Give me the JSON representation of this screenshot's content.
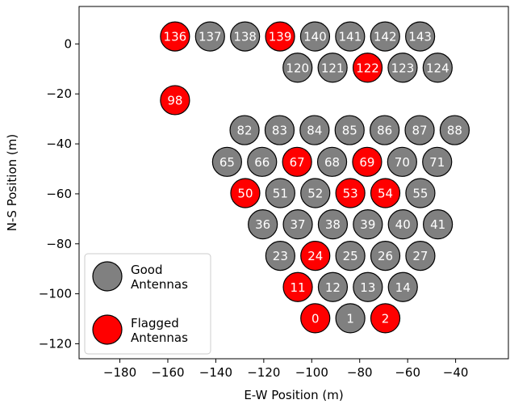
{
  "chart_data": {
    "type": "scatter",
    "xlabel": "E-W Position (m)",
    "ylabel": "N-S Position (m)",
    "xlim": [
      -197,
      -18
    ],
    "ylim": [
      -126,
      15
    ],
    "xticks": [
      -180,
      -160,
      -140,
      -120,
      -100,
      -80,
      -60,
      -40
    ],
    "yticks": [
      0,
      -20,
      -40,
      -60,
      -80,
      -100,
      -120
    ],
    "grid": false,
    "legend_placement": "bottom-left",
    "colors": {
      "good": "#808080",
      "flagged": "#ff0000",
      "edge": "#000000",
      "label": "#ffffff"
    },
    "legend": [
      {
        "status": "good",
        "line1": "Good",
        "line2": "Antennas"
      },
      {
        "status": "flagged",
        "line1": "Flagged",
        "line2": "Antennas"
      }
    ],
    "antennas": [
      {
        "id": "136",
        "x": -157.0,
        "y": 3.0,
        "status": "flagged"
      },
      {
        "id": "137",
        "x": -142.4,
        "y": 3.0,
        "status": "good"
      },
      {
        "id": "138",
        "x": -127.8,
        "y": 3.0,
        "status": "good"
      },
      {
        "id": "139",
        "x": -113.2,
        "y": 3.0,
        "status": "flagged"
      },
      {
        "id": "140",
        "x": -98.6,
        "y": 3.0,
        "status": "good"
      },
      {
        "id": "141",
        "x": -84.0,
        "y": 3.0,
        "status": "good"
      },
      {
        "id": "142",
        "x": -69.4,
        "y": 3.0,
        "status": "good"
      },
      {
        "id": "143",
        "x": -54.8,
        "y": 3.0,
        "status": "good"
      },
      {
        "id": "120",
        "x": -105.9,
        "y": -9.5,
        "status": "good"
      },
      {
        "id": "121",
        "x": -91.3,
        "y": -9.5,
        "status": "good"
      },
      {
        "id": "122",
        "x": -76.7,
        "y": -9.5,
        "status": "flagged"
      },
      {
        "id": "123",
        "x": -62.1,
        "y": -9.5,
        "status": "good"
      },
      {
        "id": "124",
        "x": -47.5,
        "y": -9.5,
        "status": "good"
      },
      {
        "id": "98",
        "x": -157.0,
        "y": -22.5,
        "status": "flagged"
      },
      {
        "id": "82",
        "x": -128.0,
        "y": -34.5,
        "status": "good"
      },
      {
        "id": "83",
        "x": -113.4,
        "y": -34.5,
        "status": "good"
      },
      {
        "id": "84",
        "x": -98.8,
        "y": -34.5,
        "status": "good"
      },
      {
        "id": "85",
        "x": -84.2,
        "y": -34.5,
        "status": "good"
      },
      {
        "id": "86",
        "x": -69.6,
        "y": -34.5,
        "status": "good"
      },
      {
        "id": "87",
        "x": -55.0,
        "y": -34.5,
        "status": "good"
      },
      {
        "id": "88",
        "x": -40.4,
        "y": -34.5,
        "status": "good"
      },
      {
        "id": "65",
        "x": -135.3,
        "y": -47.2,
        "status": "good"
      },
      {
        "id": "66",
        "x": -120.7,
        "y": -47.2,
        "status": "good"
      },
      {
        "id": "67",
        "x": -106.1,
        "y": -47.2,
        "status": "flagged"
      },
      {
        "id": "68",
        "x": -91.5,
        "y": -47.2,
        "status": "good"
      },
      {
        "id": "69",
        "x": -76.9,
        "y": -47.2,
        "status": "flagged"
      },
      {
        "id": "70",
        "x": -62.3,
        "y": -47.2,
        "status": "good"
      },
      {
        "id": "71",
        "x": -47.7,
        "y": -47.2,
        "status": "good"
      },
      {
        "id": "50",
        "x": -127.7,
        "y": -59.7,
        "status": "flagged"
      },
      {
        "id": "51",
        "x": -113.1,
        "y": -59.7,
        "status": "good"
      },
      {
        "id": "52",
        "x": -98.5,
        "y": -59.7,
        "status": "good"
      },
      {
        "id": "53",
        "x": -83.9,
        "y": -59.7,
        "status": "flagged"
      },
      {
        "id": "54",
        "x": -69.3,
        "y": -59.7,
        "status": "flagged"
      },
      {
        "id": "55",
        "x": -54.7,
        "y": -59.7,
        "status": "good"
      },
      {
        "id": "36",
        "x": -120.4,
        "y": -72.2,
        "status": "good"
      },
      {
        "id": "37",
        "x": -105.8,
        "y": -72.2,
        "status": "good"
      },
      {
        "id": "38",
        "x": -91.2,
        "y": -72.2,
        "status": "good"
      },
      {
        "id": "39",
        "x": -76.6,
        "y": -72.2,
        "status": "good"
      },
      {
        "id": "40",
        "x": -62.0,
        "y": -72.2,
        "status": "good"
      },
      {
        "id": "41",
        "x": -47.4,
        "y": -72.2,
        "status": "good"
      },
      {
        "id": "23",
        "x": -113.1,
        "y": -84.8,
        "status": "good"
      },
      {
        "id": "24",
        "x": -98.5,
        "y": -84.8,
        "status": "flagged"
      },
      {
        "id": "25",
        "x": -83.9,
        "y": -84.8,
        "status": "good"
      },
      {
        "id": "26",
        "x": -69.3,
        "y": -84.8,
        "status": "good"
      },
      {
        "id": "27",
        "x": -54.7,
        "y": -84.8,
        "status": "good"
      },
      {
        "id": "11",
        "x": -105.8,
        "y": -97.3,
        "status": "flagged"
      },
      {
        "id": "12",
        "x": -91.2,
        "y": -97.3,
        "status": "good"
      },
      {
        "id": "13",
        "x": -76.6,
        "y": -97.3,
        "status": "good"
      },
      {
        "id": "14",
        "x": -62.0,
        "y": -97.3,
        "status": "good"
      },
      {
        "id": "0",
        "x": -98.5,
        "y": -109.8,
        "status": "flagged"
      },
      {
        "id": "1",
        "x": -83.9,
        "y": -109.8,
        "status": "good"
      },
      {
        "id": "2",
        "x": -69.3,
        "y": -109.8,
        "status": "flagged"
      }
    ]
  }
}
